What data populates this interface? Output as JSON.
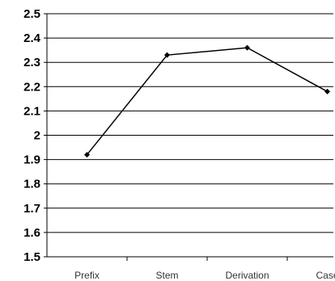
{
  "chart_data": {
    "type": "line",
    "title": "",
    "xlabel": "",
    "ylabel": "",
    "categories": [
      "Prefix",
      "Stem",
      "Derivation",
      "Case"
    ],
    "series": [
      {
        "values": [
          1.92,
          2.33,
          2.36,
          2.18
        ],
        "color": "#000000",
        "marker": "diamond"
      }
    ],
    "ylim": [
      1.5,
      2.5
    ],
    "yticks": [
      "2.5",
      "2.4",
      "2.3",
      "2.2",
      "2.1",
      "2",
      "1.9",
      "1.8",
      "1.7",
      "1.6",
      "1.5"
    ],
    "grid": true,
    "gridColor": "#000000",
    "legend": "none"
  }
}
